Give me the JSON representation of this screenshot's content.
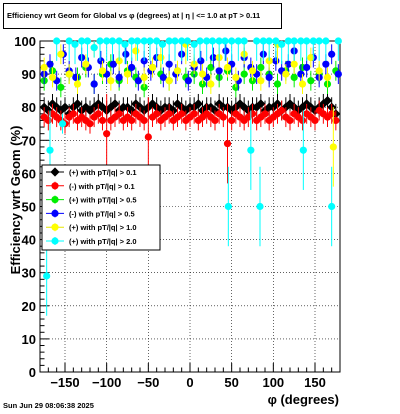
{
  "title": "Efficiency wrt Geom for Global vs φ (degrees) at |  η  | <= 1.0 at pT > 0.11",
  "footer": "Sun Jun 29 08:06:38 2025",
  "chart_data": {
    "type": "scatter",
    "title": "Efficiency wrt Geom for Global vs φ (degrees) at |  η  | <= 1.0 at pT > 0.11",
    "xlabel": "φ (degrees)",
    "ylabel": "Efficiency wrt Geom (%)",
    "xlim": [
      -180,
      180
    ],
    "ylim": [
      0,
      100
    ],
    "x_ticks": [
      -150,
      -100,
      -50,
      0,
      50,
      100,
      150
    ],
    "x_tick_labels": [
      "−150",
      "−100",
      "−50",
      "0",
      "50",
      "100",
      "150"
    ],
    "y_ticks": [
      0,
      10,
      20,
      30,
      40,
      50,
      60,
      70,
      80,
      90,
      100
    ],
    "y_tick_labels": [
      "0",
      "10",
      "20",
      "30",
      "40",
      "50",
      "60",
      "70",
      "80",
      "90",
      "100"
    ],
    "grid": true,
    "legend_position": "middle-left",
    "series": [
      {
        "name": "(+) with pT/|q| > 0.1",
        "color": "#000000",
        "marker": "diamond",
        "x": [
          -175,
          -170,
          -165,
          -160,
          -155,
          -150,
          -145,
          -140,
          -135,
          -130,
          -125,
          -120,
          -115,
          -110,
          -105,
          -100,
          -95,
          -90,
          -85,
          -80,
          -75,
          -70,
          -65,
          -60,
          -55,
          -50,
          -45,
          -40,
          -35,
          -30,
          -25,
          -20,
          -15,
          -10,
          -5,
          0,
          5,
          10,
          15,
          20,
          25,
          30,
          35,
          40,
          45,
          50,
          55,
          60,
          65,
          70,
          75,
          80,
          85,
          90,
          95,
          100,
          105,
          110,
          115,
          120,
          125,
          130,
          135,
          140,
          145,
          150,
          155,
          160,
          165,
          170,
          175
        ],
        "y": [
          80,
          79,
          81,
          80,
          79,
          80,
          78,
          80,
          81,
          79,
          80,
          79,
          80,
          81,
          80,
          79,
          80,
          81,
          79,
          80,
          80,
          79,
          81,
          80,
          79,
          80,
          81,
          80,
          79,
          80,
          80,
          79,
          81,
          80,
          79,
          80,
          80,
          81,
          79,
          80,
          80,
          79,
          81,
          80,
          80,
          79,
          80,
          81,
          80,
          79,
          80,
          80,
          81,
          79,
          80,
          80,
          81,
          79,
          80,
          81,
          80,
          79,
          80,
          81,
          80,
          79,
          80,
          81,
          82,
          80,
          78
        ]
      },
      {
        "name": "(-) with pT/|q| > 0.1",
        "color": "#ff0000",
        "marker": "circle",
        "x": [
          -175,
          -170,
          -165,
          -160,
          -155,
          -150,
          -145,
          -140,
          -135,
          -130,
          -125,
          -120,
          -115,
          -110,
          -105,
          -100,
          -95,
          -90,
          -85,
          -80,
          -75,
          -70,
          -65,
          -60,
          -55,
          -50,
          -45,
          -40,
          -35,
          -30,
          -25,
          -20,
          -15,
          -10,
          -5,
          0,
          5,
          10,
          15,
          20,
          25,
          30,
          35,
          40,
          45,
          50,
          55,
          60,
          65,
          70,
          75,
          80,
          85,
          90,
          95,
          100,
          105,
          110,
          115,
          120,
          125,
          130,
          135,
          140,
          145,
          150,
          155,
          160,
          165,
          170,
          175
        ],
        "y": [
          77,
          76,
          78,
          77,
          76,
          75,
          77,
          78,
          76,
          77,
          76,
          75,
          77,
          78,
          76,
          72,
          76,
          77,
          78,
          76,
          77,
          76,
          78,
          77,
          76,
          71,
          77,
          78,
          76,
          77,
          78,
          76,
          77,
          78,
          76,
          77,
          78,
          76,
          77,
          78,
          77,
          76,
          78,
          77,
          69,
          76,
          78,
          77,
          76,
          77,
          78,
          76,
          77,
          78,
          76,
          77,
          78,
          79,
          77,
          76,
          78,
          77,
          76,
          78,
          77,
          76,
          79,
          78,
          77,
          78,
          76
        ]
      },
      {
        "name": "(+) with pT/|q| > 0.5",
        "color": "#00ee00",
        "marker": "circle",
        "x": [
          -175,
          -165,
          -155,
          -145,
          -135,
          -125,
          -115,
          -105,
          -95,
          -85,
          -75,
          -65,
          -55,
          -45,
          -35,
          -25,
          -15,
          -5,
          5,
          15,
          25,
          35,
          45,
          55,
          65,
          75,
          85,
          95,
          105,
          115,
          125,
          135,
          145,
          155,
          165,
          175
        ],
        "y": [
          88,
          91,
          86,
          90,
          89,
          92,
          87,
          90,
          93,
          88,
          91,
          89,
          86,
          92,
          90,
          88,
          91,
          89,
          90,
          87,
          92,
          89,
          91,
          86,
          90,
          88,
          92,
          90,
          87,
          91,
          89,
          92,
          88,
          90,
          87,
          91
        ]
      },
      {
        "name": "(-) with pT/|q| > 0.5",
        "color": "#0000ff",
        "marker": "circle",
        "x": [
          -175,
          -168,
          -160,
          -152,
          -145,
          -137,
          -130,
          -122,
          -115,
          -107,
          -100,
          -92,
          -85,
          -77,
          -70,
          -62,
          -55,
          -47,
          -40,
          -32,
          -25,
          -17,
          -10,
          -2,
          5,
          13,
          20,
          28,
          35,
          43,
          50,
          58,
          65,
          73,
          80,
          88,
          95,
          103,
          110,
          118,
          125,
          133,
          140,
          148,
          155,
          163,
          170,
          178
        ],
        "y": [
          90,
          93,
          88,
          96,
          91,
          89,
          95,
          92,
          87,
          94,
          90,
          93,
          89,
          96,
          92,
          88,
          94,
          91,
          95,
          89,
          93,
          90,
          96,
          88,
          92,
          94,
          89,
          95,
          91,
          97,
          93,
          88,
          95,
          92,
          90,
          96,
          89,
          94,
          91,
          93,
          97,
          90,
          92,
          95,
          89,
          93,
          96,
          90
        ]
      },
      {
        "name": "(+) with pT/|q| > 1.0",
        "color": "#ffff00",
        "marker": "circle",
        "x": [
          -175,
          -165,
          -155,
          -145,
          -135,
          -125,
          -115,
          -105,
          -95,
          -85,
          -75,
          -65,
          -55,
          -45,
          -35,
          -25,
          -15,
          -5,
          5,
          15,
          25,
          35,
          45,
          55,
          65,
          75,
          85,
          95,
          105,
          115,
          125,
          135,
          145,
          155,
          165,
          172
        ],
        "y": [
          92,
          89,
          96,
          90,
          87,
          93,
          98,
          91,
          88,
          94,
          90,
          97,
          89,
          92,
          95,
          88,
          91,
          99,
          93,
          90,
          87,
          95,
          92,
          89,
          96,
          91,
          88,
          94,
          99,
          90,
          93,
          87,
          95,
          91,
          89,
          68
        ]
      },
      {
        "name": "(+) with pT/|q| > 2.0",
        "color": "#00ffff",
        "marker": "circle",
        "x": [
          -172,
          -168,
          -160,
          -153,
          -145,
          -138,
          -130,
          -123,
          -115,
          -108,
          -100,
          -93,
          -85,
          -78,
          -70,
          -63,
          -55,
          -48,
          -40,
          -33,
          -25,
          -18,
          -10,
          -3,
          5,
          12,
          20,
          27,
          35,
          42,
          46,
          50,
          58,
          65,
          73,
          80,
          84,
          88,
          95,
          103,
          110,
          118,
          125,
          133,
          136,
          140,
          148,
          155,
          163,
          170,
          178
        ],
        "y": [
          29,
          67,
          100,
          75,
          100,
          99,
          100,
          100,
          98,
          100,
          100,
          100,
          100,
          99,
          100,
          100,
          100,
          100,
          100,
          99,
          100,
          100,
          100,
          100,
          99,
          100,
          100,
          100,
          100,
          100,
          50,
          100,
          100,
          100,
          67,
          100,
          50,
          100,
          100,
          100,
          99,
          100,
          100,
          100,
          67,
          100,
          100,
          100,
          100,
          50,
          100
        ]
      }
    ]
  }
}
